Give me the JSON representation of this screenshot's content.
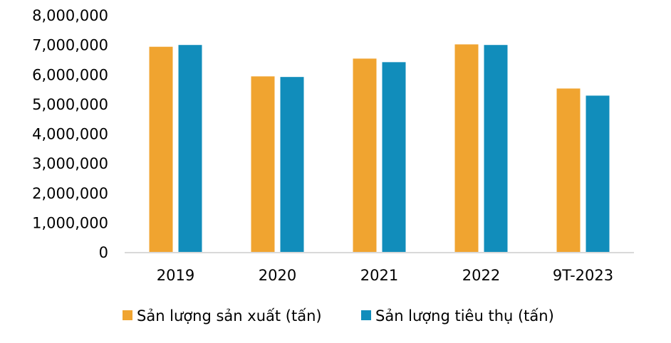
{
  "chart_data": {
    "type": "bar",
    "categories": [
      "2019",
      "2020",
      "2021",
      "2022",
      "9T-2023"
    ],
    "series": [
      {
        "name": "Sản lượng sản xuất (tấn)",
        "color": "#F0A430",
        "values": [
          6950000,
          5950000,
          6550000,
          7030000,
          5540000
        ]
      },
      {
        "name": "Sản lượng tiêu thụ (tấn)",
        "color": "#118DBB",
        "values": [
          7010000,
          5930000,
          6430000,
          7010000,
          5300000
        ]
      }
    ],
    "ylim": [
      0,
      8000000
    ],
    "yticks": [
      "0",
      "1,000,000",
      "2,000,000",
      "3,000,000",
      "4,000,000",
      "5,000,000",
      "6,000,000",
      "7,000,000",
      "8,000,000"
    ],
    "grid": false,
    "legend_position": "bottom-left",
    "title": "",
    "xlabel": "",
    "ylabel": ""
  }
}
